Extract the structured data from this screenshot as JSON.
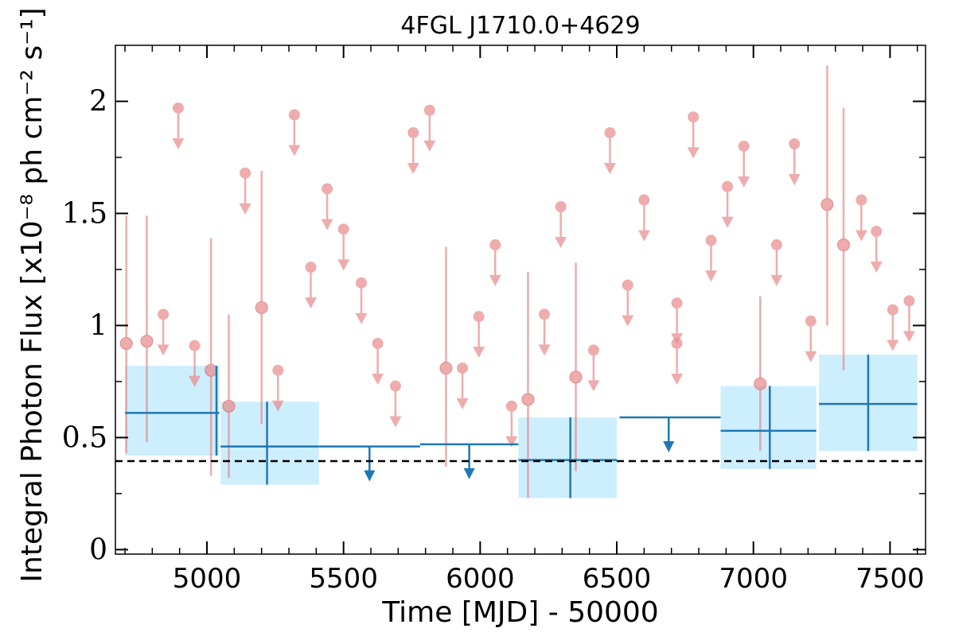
{
  "chart_data": {
    "type": "scatter",
    "title": "4FGL J1710.0+4629",
    "xlabel": "Time [MJD] - 50000",
    "ylabel": "Integral Photon Flux [x10⁻⁸ ph cm⁻² s⁻¹]",
    "xlim": [
      4665,
      7630
    ],
    "ylim": [
      -0.02,
      2.25
    ],
    "xticks": [
      5000,
      5500,
      6000,
      6500,
      7000,
      7500
    ],
    "xtick_labels": [
      "5000",
      "5500",
      "6000",
      "6500",
      "7000",
      "7500"
    ],
    "yticks": [
      0,
      0.5,
      1,
      1.5,
      2
    ],
    "ytick_labels": [
      "0",
      "0.5",
      "1",
      "1.5",
      "2"
    ],
    "grid": false,
    "reference_line": {
      "y": 0.395,
      "style": "dashed",
      "color": "#000000"
    },
    "colors": {
      "fine": "#e8898b",
      "coarse": "#1f77b4",
      "band": "#cdeefc"
    },
    "series": [
      {
        "kind": "fine-detections",
        "points": [
          {
            "x": 4705,
            "y": 0.92,
            "ylo": 0.43,
            "yhi": 1.49
          },
          {
            "x": 4780,
            "y": 0.93,
            "ylo": 0.48,
            "yhi": 1.49
          },
          {
            "x": 5015,
            "y": 0.8,
            "ylo": 0.33,
            "yhi": 1.39
          },
          {
            "x": 5080,
            "y": 0.64,
            "ylo": 0.32,
            "yhi": 1.05
          },
          {
            "x": 5200,
            "y": 1.08,
            "ylo": 0.56,
            "yhi": 1.69
          },
          {
            "x": 5875,
            "y": 0.81,
            "ylo": 0.37,
            "yhi": 1.35
          },
          {
            "x": 6175,
            "y": 0.67,
            "ylo": 0.23,
            "yhi": 1.24
          },
          {
            "x": 6350,
            "y": 0.77,
            "ylo": 0.35,
            "yhi": 1.28
          },
          {
            "x": 7025,
            "y": 0.74,
            "ylo": 0.44,
            "yhi": 1.13
          },
          {
            "x": 7270,
            "y": 1.54,
            "ylo": 1.0,
            "yhi": 2.16
          },
          {
            "x": 7330,
            "y": 1.36,
            "ylo": 0.8,
            "yhi": 1.97
          }
        ]
      },
      {
        "kind": "fine-upper-limits",
        "points": [
          {
            "x": 4840,
            "y": 1.05
          },
          {
            "x": 4895,
            "y": 1.97
          },
          {
            "x": 4955,
            "y": 0.91
          },
          {
            "x": 5140,
            "y": 1.68
          },
          {
            "x": 5260,
            "y": 0.8
          },
          {
            "x": 5320,
            "y": 1.94
          },
          {
            "x": 5380,
            "y": 1.26
          },
          {
            "x": 5440,
            "y": 1.61
          },
          {
            "x": 5500,
            "y": 1.43
          },
          {
            "x": 5565,
            "y": 1.19
          },
          {
            "x": 5625,
            "y": 0.92
          },
          {
            "x": 5690,
            "y": 0.73
          },
          {
            "x": 5755,
            "y": 1.86
          },
          {
            "x": 5815,
            "y": 1.96
          },
          {
            "x": 5935,
            "y": 0.81
          },
          {
            "x": 5995,
            "y": 1.04
          },
          {
            "x": 6055,
            "y": 1.36
          },
          {
            "x": 6115,
            "y": 0.64
          },
          {
            "x": 6235,
            "y": 1.05
          },
          {
            "x": 6295,
            "y": 1.53
          },
          {
            "x": 6415,
            "y": 0.89
          },
          {
            "x": 6475,
            "y": 1.86
          },
          {
            "x": 6540,
            "y": 1.18
          },
          {
            "x": 6600,
            "y": 1.56
          },
          {
            "x": 6720,
            "y": 0.92
          },
          {
            "x": 6720,
            "y": 1.1
          },
          {
            "x": 6780,
            "y": 1.93
          },
          {
            "x": 6845,
            "y": 1.38
          },
          {
            "x": 6905,
            "y": 1.62
          },
          {
            "x": 6965,
            "y": 1.8
          },
          {
            "x": 7085,
            "y": 1.36
          },
          {
            "x": 7150,
            "y": 1.81
          },
          {
            "x": 7210,
            "y": 1.02
          },
          {
            "x": 7395,
            "y": 1.56
          },
          {
            "x": 7450,
            "y": 1.42
          },
          {
            "x": 7510,
            "y": 1.07
          },
          {
            "x": 7570,
            "y": 1.11
          }
        ]
      },
      {
        "kind": "coarse-detections",
        "points": [
          {
            "x": 5035,
            "x0": 4700,
            "x1": 5045,
            "y": 0.61,
            "ylo": 0.42,
            "yhi": 0.82
          },
          {
            "x": 5220,
            "x0": 5050,
            "x1": 5410,
            "y": 0.46,
            "ylo": 0.29,
            "yhi": 0.66
          },
          {
            "x": 6330,
            "x0": 6140,
            "x1": 6500,
            "y": 0.4,
            "ylo": 0.23,
            "yhi": 0.59
          },
          {
            "x": 7060,
            "x0": 6880,
            "x1": 7230,
            "y": 0.53,
            "ylo": 0.36,
            "yhi": 0.73
          },
          {
            "x": 7420,
            "x0": 7240,
            "x1": 7600,
            "y": 0.65,
            "ylo": 0.44,
            "yhi": 0.87
          }
        ]
      },
      {
        "kind": "coarse-upper-limits",
        "points": [
          {
            "x": 5595,
            "x0": 5410,
            "x1": 5780,
            "y": 0.46
          },
          {
            "x": 5960,
            "x0": 5780,
            "x1": 6140,
            "y": 0.47
          },
          {
            "x": 6690,
            "x0": 6510,
            "x1": 6880,
            "y": 0.59
          }
        ]
      }
    ]
  }
}
